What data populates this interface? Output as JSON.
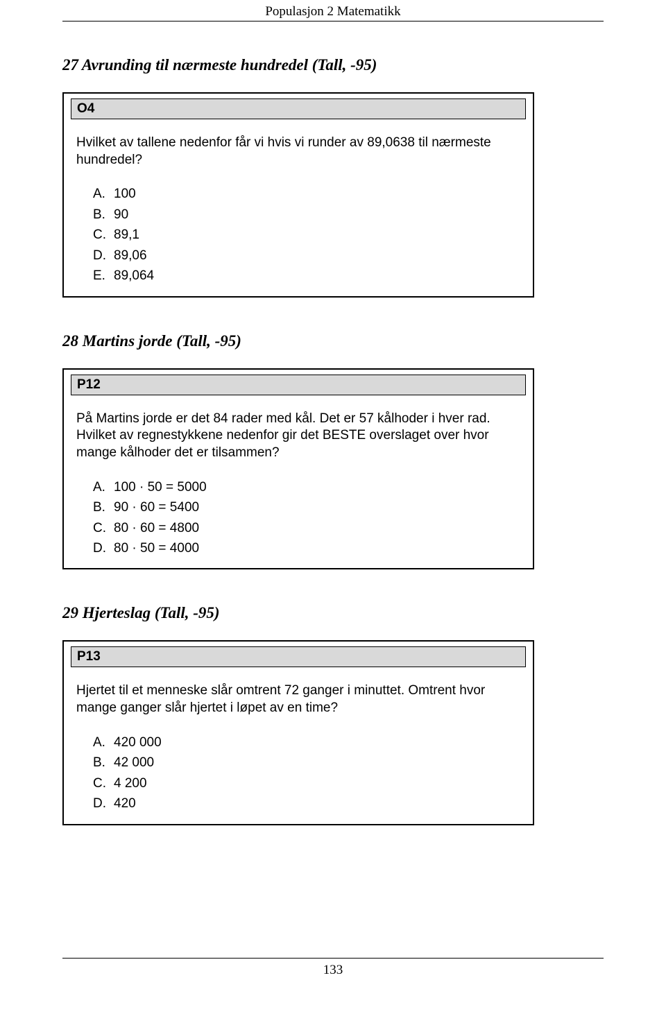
{
  "header": {
    "title": "Populasjon 2 Matematikk"
  },
  "questions": [
    {
      "section_title": "27 Avrunding til nærmeste hundredel (Tall, -95)",
      "code": "O4",
      "text": "Hvilket av tallene nedenfor får vi hvis vi runder av 89,0638 til nærmeste hundredel?",
      "options": [
        {
          "letter": "A.",
          "value": "100"
        },
        {
          "letter": "B.",
          "value": "90"
        },
        {
          "letter": "C.",
          "value": "89,1"
        },
        {
          "letter": "D.",
          "value": "89,06"
        },
        {
          "letter": "E.",
          "value": "89,064"
        }
      ]
    },
    {
      "section_title": "28 Martins jorde (Tall, -95)",
      "code": "P12",
      "text": "På Martins jorde er det 84 rader med kål. Det er 57 kålhoder i hver rad. Hvilket av regnestykkene nedenfor gir det BESTE overslaget over hvor mange kålhoder det er tilsammen?",
      "options": [
        {
          "letter": "A.",
          "value": "100 · 50 = 5000"
        },
        {
          "letter": "B.",
          "value": "90 · 60 = 5400"
        },
        {
          "letter": "C.",
          "value": "80 · 60 = 4800"
        },
        {
          "letter": "D.",
          "value": "80 · 50 = 4000"
        }
      ]
    },
    {
      "section_title": "29 Hjerteslag (Tall, -95)",
      "code": "P13",
      "text": "Hjertet til et menneske slår omtrent 72 ganger i minuttet. Omtrent hvor mange ganger slår hjertet i løpet av en time?",
      "options": [
        {
          "letter": "A.",
          "value": "420 000"
        },
        {
          "letter": "B.",
          "value": "42 000"
        },
        {
          "letter": "C.",
          "value": "4 200"
        },
        {
          "letter": "D.",
          "value": "420"
        }
      ]
    }
  ],
  "footer": {
    "page_number": "133"
  }
}
